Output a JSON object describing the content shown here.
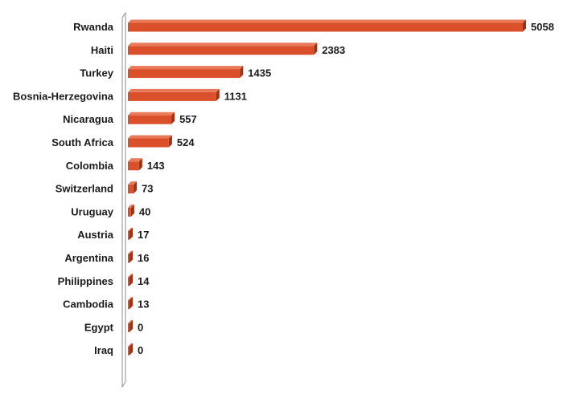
{
  "chart_data": {
    "type": "bar",
    "orientation": "horizontal",
    "categories": [
      "Rwanda",
      "Haiti",
      "Turkey",
      "Bosnia-Herzegovina",
      "Nicaragua",
      "South Africa",
      "Colombia",
      "Switzerland",
      "Uruguay",
      "Austria",
      "Argentina",
      "Philippines",
      "Cambodia",
      "Egypt",
      "Iraq"
    ],
    "values": [
      5058,
      2383,
      1435,
      1131,
      557,
      524,
      143,
      73,
      40,
      17,
      16,
      14,
      13,
      0,
      0
    ],
    "value_labels": [
      "5058",
      "2383",
      "1435",
      "1131",
      "557",
      "524",
      "143",
      "73",
      "40",
      "17",
      "16",
      "14",
      "13",
      "0",
      "0"
    ],
    "xlim": [
      0,
      5058
    ],
    "grid": false,
    "legend": "none",
    "style": "3d"
  },
  "colors": {
    "bar_front": "#d9502a",
    "bar_top": "#e87a5a",
    "bar_side": "#9a3418",
    "axis_wall": "#ffffff",
    "axis_wall_stroke": "#8c8c8c"
  }
}
